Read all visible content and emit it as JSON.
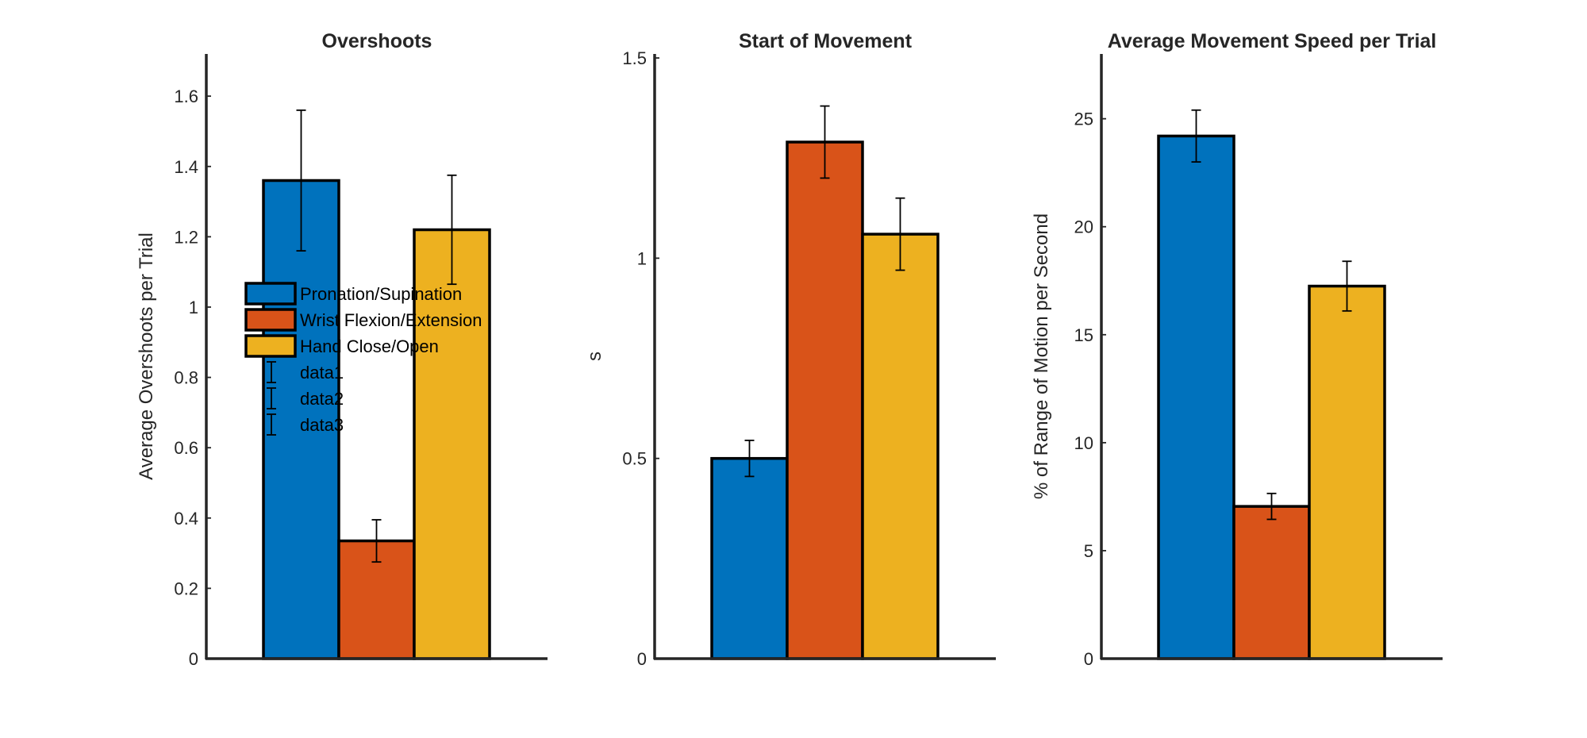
{
  "colors": {
    "Pronation/Supination": "#0072BD",
    "Wrist Flexion/Extension": "#D95319",
    "Hand Close/Open": "#EDB120",
    "axis": "#262626",
    "bar_edge": "#000000"
  },
  "legend": {
    "entries": [
      "Pronation/Supination",
      "Wrist Flexion/Extension",
      "Hand Close/Open",
      "data1",
      "data2",
      "data3"
    ],
    "placement": "inside-left of first chart"
  },
  "chart_data": [
    {
      "type": "bar",
      "title": "Overshoots",
      "ylabel": "Average Overshoots per Trial",
      "xlabel": "",
      "ylim": [
        0,
        1.72
      ],
      "yticks": [
        0,
        0.2,
        0.4,
        0.6,
        0.8,
        1,
        1.2,
        1.4,
        1.6
      ],
      "yticklabels": [
        "0",
        "0.2",
        "0.4",
        "0.6",
        "0.8",
        "1",
        "1.2",
        "1.4",
        "1.6"
      ],
      "categories": [
        "Pronation/Supination",
        "Wrist Flexion/Extension",
        "Hand Close/Open"
      ],
      "values": [
        1.36,
        0.335,
        1.22
      ],
      "errors": [
        0.2,
        0.06,
        0.155
      ]
    },
    {
      "type": "bar",
      "title": "Start of Movement",
      "ylabel": "s",
      "xlabel": "",
      "ylim": [
        0,
        1.51
      ],
      "yticks": [
        0,
        0.5,
        1,
        1.5
      ],
      "yticklabels": [
        "0",
        "0.5",
        "1",
        "1.5"
      ],
      "categories": [
        "Pronation/Supination",
        "Wrist Flexion/Extension",
        "Hand Close/Open"
      ],
      "values": [
        0.5,
        1.29,
        1.06
      ],
      "errors": [
        0.045,
        0.09,
        0.09
      ]
    },
    {
      "type": "bar",
      "title": "Average Movement Speed per Trial",
      "ylabel": "% of Range of Motion per Second",
      "xlabel": "",
      "ylim": [
        0,
        28
      ],
      "yticks": [
        0,
        5,
        10,
        15,
        20,
        25
      ],
      "yticklabels": [
        "0",
        "5",
        "10",
        "15",
        "20",
        "25"
      ],
      "categories": [
        "Pronation/Supination",
        "Wrist Flexion/Extension",
        "Hand Close/Open"
      ],
      "values": [
        24.2,
        7.05,
        17.25
      ],
      "errors": [
        1.2,
        0.6,
        1.15
      ]
    }
  ]
}
